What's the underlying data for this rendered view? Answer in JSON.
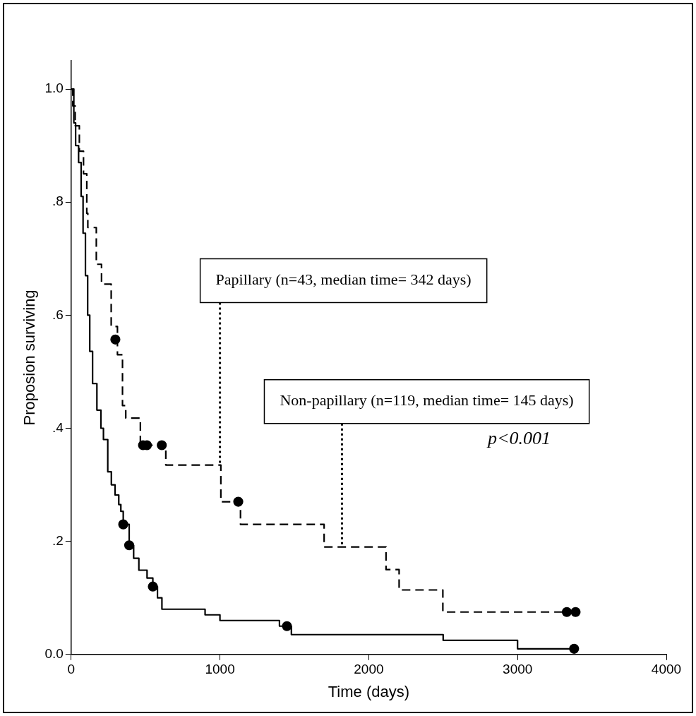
{
  "chart_data": {
    "type": "step",
    "xlabel": "Time (days)",
    "ylabel": "Proposion surviving",
    "xlim": [
      0,
      4000
    ],
    "xticks": [
      0,
      1000,
      2000,
      3000,
      4000
    ],
    "ylim": [
      0,
      1.05
    ],
    "yticks": [
      {
        "value": 0,
        "label": "0.0"
      },
      {
        "value": 0.2,
        "label": ".2"
      },
      {
        "value": 0.4,
        "label": ".4"
      },
      {
        "value": 0.6,
        "label": ".6"
      },
      {
        "value": 0.8,
        "label": ".8"
      },
      {
        "value": 1,
        "label": "1.0"
      }
    ],
    "grid": false,
    "legend": false,
    "annotations": [
      {
        "text": "Papillary (n=43, median time= 342 days)",
        "x": 1000,
        "y": 0.335
      },
      {
        "text": "Non-papillary (n=119, median time= 145 days)",
        "x": 1820,
        "y": 0.19
      },
      "p<0.001"
    ],
    "series": [
      {
        "type": "step",
        "color": "#000000",
        "line_style": "solid",
        "marker": "none",
        "x": [
          0,
          18,
          30,
          50,
          67,
          80,
          96,
          111,
          125,
          144,
          173,
          200,
          217,
          246,
          270,
          295,
          320,
          334,
          350,
          390,
          420,
          455,
          510,
          549,
          580,
          610,
          900,
          1000,
          1400,
          1480,
          2500,
          3000,
          3380
        ],
        "values": [
          1.0,
          0.94,
          0.9,
          0.87,
          0.81,
          0.745,
          0.67,
          0.6,
          0.536,
          0.479,
          0.432,
          0.4,
          0.38,
          0.323,
          0.3,
          0.282,
          0.265,
          0.253,
          0.23,
          0.193,
          0.17,
          0.149,
          0.135,
          0.12,
          0.1,
          0.08,
          0.07,
          0.06,
          0.05,
          0.035,
          0.025,
          0.01,
          0.01
        ]
      },
      {
        "type": "step",
        "color": "#000000",
        "line_style": "dashed",
        "marker": "none",
        "x": [
          0,
          11,
          27,
          55,
          83,
          105,
          112,
          169,
          204,
          269,
          311,
          345,
          367,
          465,
          636,
          1006,
          1138,
          1700,
          2116,
          2204,
          2498,
          3400
        ],
        "values": [
          1.0,
          0.97,
          0.935,
          0.89,
          0.85,
          0.78,
          0.755,
          0.69,
          0.655,
          0.58,
          0.53,
          0.44,
          0.418,
          0.37,
          0.335,
          0.27,
          0.23,
          0.19,
          0.15,
          0.114,
          0.075,
          0.075
        ]
      },
      {
        "type": "scatter",
        "color": "#000000",
        "marker": "circle",
        "x": [
          350,
          390,
          549,
          1450,
          3380
        ],
        "values": [
          0.23,
          0.193,
          0.12,
          0.05,
          0.01
        ]
      },
      {
        "type": "scatter",
        "color": "#000000",
        "marker": "circle",
        "x": [
          297,
          483,
          509,
          609,
          1123,
          3331,
          3390
        ],
        "values": [
          0.557,
          0.37,
          0.37,
          0.37,
          0.27,
          0.075,
          0.075
        ]
      }
    ]
  }
}
